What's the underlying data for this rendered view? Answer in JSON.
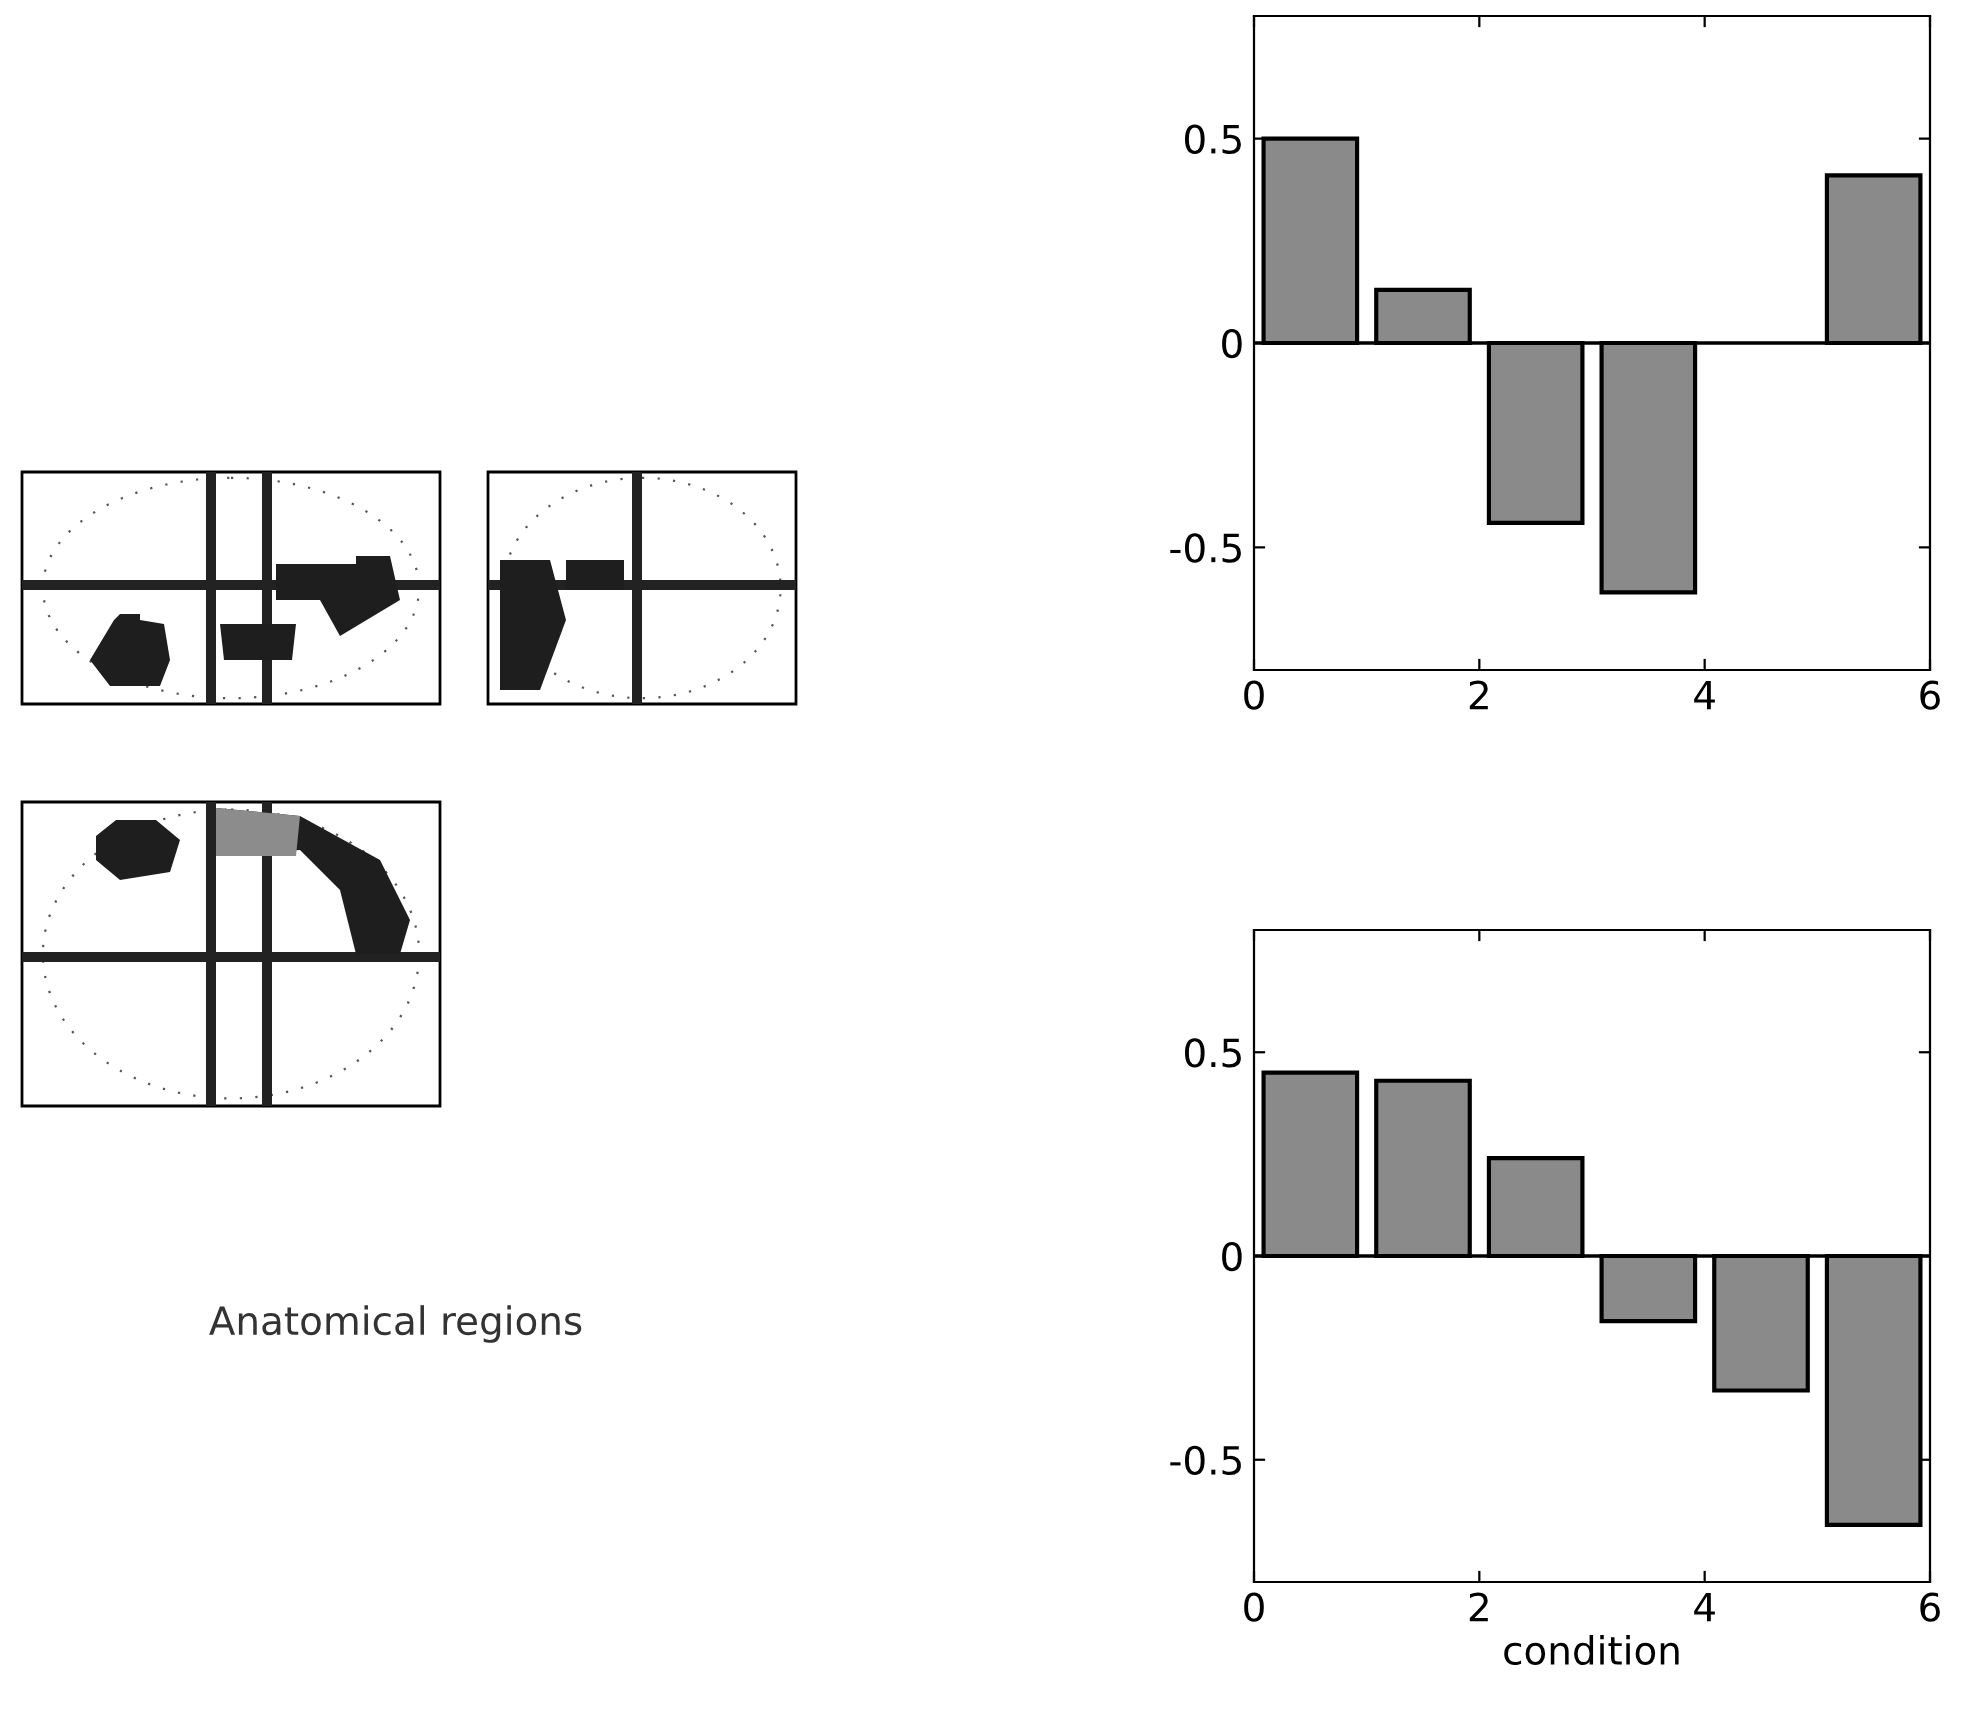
{
  "chart_data": [
    {
      "type": "bar",
      "x": [
        0.5,
        1.5,
        2.5,
        3.5,
        4.5,
        5.5
      ],
      "values": [
        0.5,
        0.13,
        -0.44,
        -0.61,
        null,
        0.41
      ],
      "color": "#8a8a8a",
      "xlim": [
        0,
        6
      ],
      "xticks": [
        0,
        2,
        4,
        6
      ],
      "ylim": [
        -0.8,
        0.8
      ],
      "yticks": [
        -0.5,
        0,
        0.5
      ],
      "ref_lines": [
        {
          "axis": "y",
          "value": 0,
          "color": "#000000"
        }
      ],
      "grid": false
    },
    {
      "type": "bar",
      "x": [
        0.5,
        1.5,
        2.5,
        3.5,
        4.5,
        5.5
      ],
      "values": [
        0.45,
        0.43,
        0.24,
        -0.16,
        -0.33,
        -0.66
      ],
      "color": "#8a8a8a",
      "xlim": [
        0,
        6
      ],
      "xticks": [
        0,
        2,
        4,
        6
      ],
      "ylim": [
        -0.8,
        0.8
      ],
      "yticks": [
        -0.5,
        0,
        0.5
      ],
      "xlabel": "condition",
      "ref_lines": [
        {
          "axis": "y",
          "value": 0,
          "color": "#000000"
        }
      ],
      "grid": false
    },
    {
      "type": "other",
      "annotations": [
        "Anatomical regions"
      ]
    }
  ]
}
